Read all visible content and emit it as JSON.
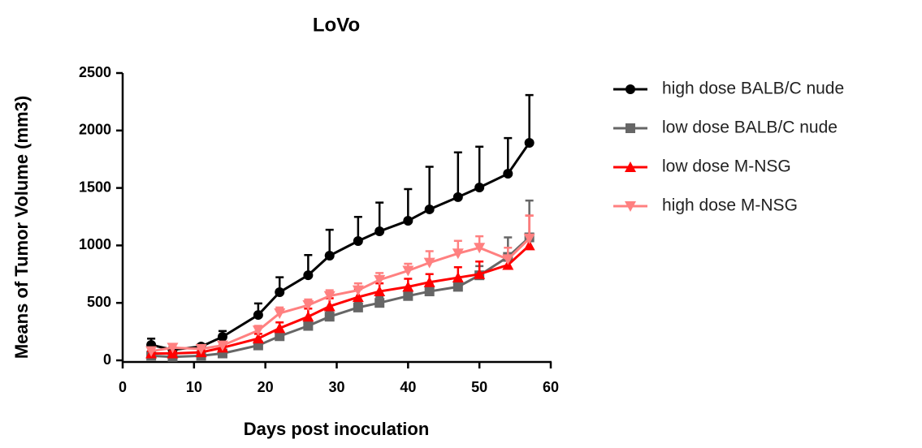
{
  "chart_data": {
    "type": "line",
    "title": "LoVo",
    "x_label": "Days post inoculation",
    "y_label": "Means of Tumor Volume (mm3)",
    "x": [
      4,
      7,
      11,
      14,
      19,
      22,
      26,
      29,
      33,
      36,
      40,
      43,
      47,
      50,
      54,
      57
    ],
    "xlim": [
      0,
      60
    ],
    "xticks": [
      0,
      10,
      20,
      30,
      40,
      50,
      60
    ],
    "ylim": [
      0,
      2500
    ],
    "yticks": [
      0,
      500,
      1000,
      1500,
      2000,
      2500
    ],
    "grid": false,
    "legend": "right",
    "series": [
      {
        "name": "high dose BALB/C nude",
        "color": "#000000",
        "marker": "circle",
        "values": [
          134,
          92,
          120,
          205,
          395,
          593,
          741,
          911,
          1038,
          1123,
          1215,
          1314,
          1420,
          1504,
          1624,
          1893
        ],
        "errors": [
          55,
          20,
          20,
          50,
          100,
          130,
          175,
          225,
          210,
          250,
          275,
          370,
          390,
          355,
          310,
          415
        ]
      },
      {
        "name": "low dose BALB/C nude",
        "color": "#666666",
        "marker": "square",
        "values": [
          40,
          30,
          40,
          60,
          130,
          210,
          300,
          380,
          460,
          500,
          560,
          600,
          640,
          740,
          900,
          1070
        ],
        "errors": [
          10,
          10,
          10,
          20,
          30,
          40,
          50,
          50,
          50,
          50,
          50,
          60,
          60,
          80,
          170,
          320
        ]
      },
      {
        "name": "low dose M-NSG",
        "color": "#ff0000",
        "marker": "triangle-up",
        "values": [
          60,
          60,
          70,
          110,
          190,
          280,
          380,
          470,
          550,
          600,
          640,
          680,
          720,
          750,
          830,
          1000
        ],
        "errors": [
          20,
          20,
          20,
          20,
          40,
          50,
          70,
          70,
          70,
          70,
          70,
          70,
          90,
          110,
          80,
          260
        ]
      },
      {
        "name": "high dose M-NSG",
        "color": "#ff8080",
        "marker": "triangle-down",
        "values": [
          80,
          110,
          100,
          130,
          260,
          410,
          480,
          560,
          610,
          700,
          780,
          850,
          930,
          980,
          880,
          1060
        ],
        "errors": [
          30,
          30,
          30,
          30,
          40,
          50,
          50,
          50,
          60,
          60,
          60,
          100,
          110,
          100,
          100,
          200
        ]
      }
    ]
  }
}
